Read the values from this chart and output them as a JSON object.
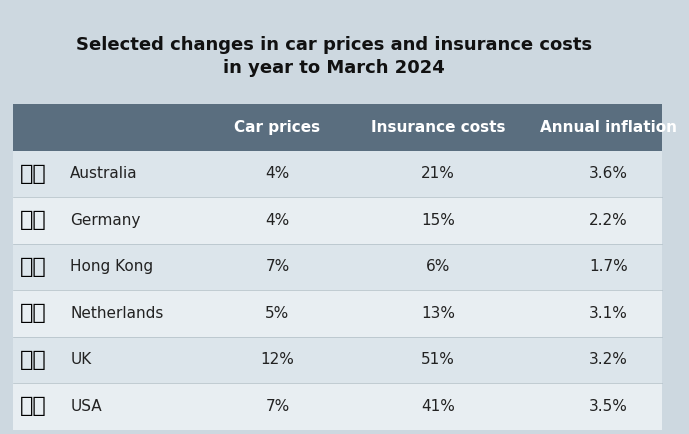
{
  "title": "Selected changes in car prices and insurance costs\nin year to March 2024",
  "columns": [
    "Car prices",
    "Insurance costs",
    "Annual inflation"
  ],
  "rows": [
    {
      "country": "Australia",
      "car_prices": "4%",
      "insurance": "21%",
      "inflation": "3.6%"
    },
    {
      "country": "Germany",
      "car_prices": "4%",
      "insurance": "15%",
      "inflation": "2.2%"
    },
    {
      "country": "Hong Kong",
      "car_prices": "7%",
      "insurance": "6%",
      "inflation": "1.7%"
    },
    {
      "country": "Netherlands",
      "car_prices": "5%",
      "insurance": "13%",
      "inflation": "3.1%"
    },
    {
      "country": "UK",
      "car_prices": "12%",
      "insurance": "51%",
      "inflation": "3.2%"
    },
    {
      "country": "USA",
      "car_prices": "7%",
      "insurance": "41%",
      "inflation": "3.5%"
    }
  ],
  "bg_color": "#cdd8e0",
  "header_bg": "#5a6e7f",
  "header_text_color": "#ffffff",
  "row_even_bg": "#dce5eb",
  "row_odd_bg": "#e8eef2",
  "text_color": "#222222",
  "title_color": "#111111",
  "title_fontsize": 13,
  "header_fontsize": 11,
  "cell_fontsize": 11,
  "country_fontsize": 11
}
